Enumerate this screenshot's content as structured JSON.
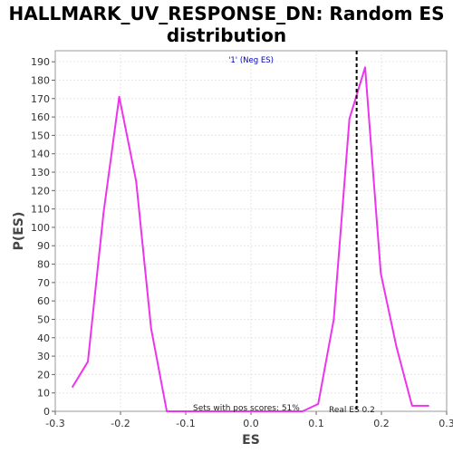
{
  "chart_data": {
    "type": "line",
    "title_lines": [
      "HALLMARK_UV_RESPONSE_DN: Random ES",
      "distribution"
    ],
    "xlabel": "ES",
    "ylabel": "P(ES)",
    "xlim": [
      -0.3,
      0.3
    ],
    "ylim": [
      0,
      196
    ],
    "x_ticks": [
      -0.3,
      -0.2,
      -0.1,
      0.0,
      0.1,
      0.2,
      0.3
    ],
    "x_tick_labels": [
      "-0.3",
      "-0.2",
      "-0.1",
      "0.0",
      "0.1",
      "0.2",
      "0.3"
    ],
    "y_ticks": [
      0,
      10,
      20,
      30,
      40,
      50,
      60,
      70,
      80,
      90,
      100,
      110,
      120,
      130,
      140,
      150,
      160,
      170,
      180,
      190
    ],
    "y_tick_labels": [
      "0",
      "10",
      "20",
      "30",
      "40",
      "50",
      "60",
      "70",
      "80",
      "90",
      "100",
      "110",
      "120",
      "130",
      "140",
      "150",
      "160",
      "170",
      "180",
      "190"
    ],
    "grid": true,
    "series": [
      {
        "name": "'1' (Neg ES)",
        "color": "#ee33ee",
        "x": [
          -0.274,
          -0.25,
          -0.226,
          -0.202,
          -0.176,
          -0.153,
          -0.129,
          -0.105,
          -0.081,
          -0.057,
          -0.033,
          -0.009,
          0.015,
          0.039,
          0.063,
          0.079,
          0.103,
          0.127,
          0.151,
          0.175,
          0.199,
          0.223,
          0.247,
          0.273
        ],
        "values": [
          13,
          27,
          108,
          171,
          125,
          45,
          0,
          0,
          0,
          0,
          0,
          0,
          0,
          0,
          0,
          0,
          4,
          50,
          159,
          187,
          75,
          35,
          3,
          3
        ]
      }
    ],
    "real_es": 0.162,
    "annotations": {
      "pos_scores": "Sets with pos scores: 51%",
      "real_es": "Real ES 0.2"
    },
    "legend_position": "top-center"
  }
}
